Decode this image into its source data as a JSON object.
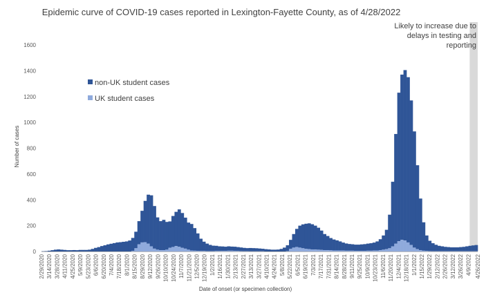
{
  "chart_data": {
    "type": "bar",
    "stacked": true,
    "title": "Epidemic curve of COVID-19 cases reported in Lexington-Fayette County, as of 4/28/2022",
    "xlabel": "Date of onset (or specimen collection)",
    "ylabel": "Number of cases",
    "ylim": [
      0,
      1600
    ],
    "yticks": [
      0,
      200,
      400,
      600,
      800,
      1000,
      1200,
      1400,
      1600
    ],
    "grid": false,
    "legend_position": "left, inside plot",
    "x_range": [
      "2/29/2020",
      "4/26/2022"
    ],
    "xtick_labels": [
      "2/29/2020",
      "3/14/2020",
      "3/28/2020",
      "4/11/2020",
      "4/25/2020",
      "5/9/2020",
      "5/23/2020",
      "6/6/2020",
      "6/20/2020",
      "7/4/2020",
      "7/18/2020",
      "8/1/2020",
      "8/15/2020",
      "8/29/2020",
      "9/12/2020",
      "9/26/2020",
      "10/10/2020",
      "10/24/2020",
      "11/7/2020",
      "11/21/2020",
      "12/5/2020",
      "12/19/2020",
      "1/2/2021",
      "1/16/2021",
      "1/30/2021",
      "2/13/2021",
      "2/27/2021",
      "3/13/2021",
      "3/27/2021",
      "4/10/2021",
      "4/24/2021",
      "5/8/2021",
      "5/22/2021",
      "6/5/2021",
      "6/19/2021",
      "7/3/2021",
      "7/17/2021",
      "7/31/2021",
      "8/14/2021",
      "8/28/2021",
      "9/11/2021",
      "9/25/2021",
      "10/9/2021",
      "10/23/2021",
      "11/6/2021",
      "11/20/2021",
      "12/4/2021",
      "12/18/2021",
      "1/1/2022",
      "1/15/2022",
      "1/29/2022",
      "2/12/2022",
      "2/26/2022",
      "3/12/2022",
      "3/26/2022",
      "4/9/2022",
      "4/26/2022"
    ],
    "series": [
      {
        "name": "non-UK student cases",
        "color": "#2f5597",
        "weekly_values": [
          2,
          3,
          6,
          10,
          14,
          16,
          14,
          12,
          10,
          10,
          11,
          10,
          12,
          12,
          12,
          14,
          20,
          28,
          34,
          42,
          48,
          55,
          60,
          65,
          70,
          72,
          75,
          78,
          85,
          100,
          128,
          180,
          245,
          320,
          380,
          395,
          330,
          250,
          225,
          235,
          215,
          205,
          240,
          265,
          290,
          270,
          240,
          210,
          205,
          175,
          135,
          95,
          72,
          58,
          48,
          42,
          40,
          36,
          34,
          32,
          34,
          32,
          32,
          30,
          28,
          26,
          24,
          26,
          25,
          24,
          22,
          20,
          18,
          16,
          14,
          14,
          15,
          20,
          30,
          45,
          70,
          105,
          140,
          170,
          185,
          195,
          200,
          195,
          185,
          170,
          150,
          125,
          110,
          95,
          85,
          78,
          70,
          62,
          56,
          52,
          50,
          48,
          48,
          50,
          52,
          55,
          58,
          62,
          70,
          85,
          110,
          150,
          260,
          500,
          850,
          1150,
          1280,
          1320,
          1280,
          1120,
          900,
          650,
          400,
          220,
          120,
          80,
          62,
          50,
          42,
          38,
          34,
          32,
          30,
          30,
          30,
          32,
          34,
          38,
          42,
          45,
          48
        ]
      },
      {
        "name": "UK student cases",
        "color": "#8faadc",
        "weekly_values": [
          0,
          0,
          0,
          0,
          0,
          0,
          0,
          0,
          0,
          0,
          0,
          0,
          0,
          0,
          0,
          0,
          0,
          0,
          0,
          0,
          0,
          0,
          0,
          0,
          0,
          0,
          0,
          0,
          0,
          5,
          25,
          55,
          70,
          72,
          60,
          40,
          22,
          14,
          10,
          10,
          14,
          28,
          35,
          42,
          36,
          28,
          22,
          14,
          8,
          6,
          5,
          4,
          4,
          3,
          3,
          3,
          4,
          4,
          5,
          5,
          6,
          6,
          5,
          4,
          3,
          2,
          2,
          1,
          1,
          1,
          1,
          1,
          0,
          0,
          0,
          0,
          0,
          0,
          0,
          3,
          20,
          30,
          35,
          30,
          25,
          20,
          18,
          16,
          15,
          14,
          12,
          10,
          10,
          9,
          8,
          8,
          8,
          7,
          6,
          6,
          6,
          5,
          5,
          5,
          5,
          6,
          6,
          7,
          8,
          10,
          14,
          18,
          25,
          40,
          60,
          80,
          90,
          85,
          70,
          50,
          30,
          18,
          10,
          6,
          4,
          3,
          2,
          2,
          2,
          2,
          2,
          2,
          2,
          2,
          2,
          2,
          2,
          2,
          2,
          2,
          2
        ]
      }
    ],
    "annotation": "Likely to increase due to delays in testing and reporting",
    "annotation_lines": [
      "Likely to increase due to",
      "delays in testing and",
      "reporting"
    ],
    "shaded_period": [
      "4/14/2022",
      "4/26/2022"
    ],
    "shade_color": "#d9d9d9"
  }
}
